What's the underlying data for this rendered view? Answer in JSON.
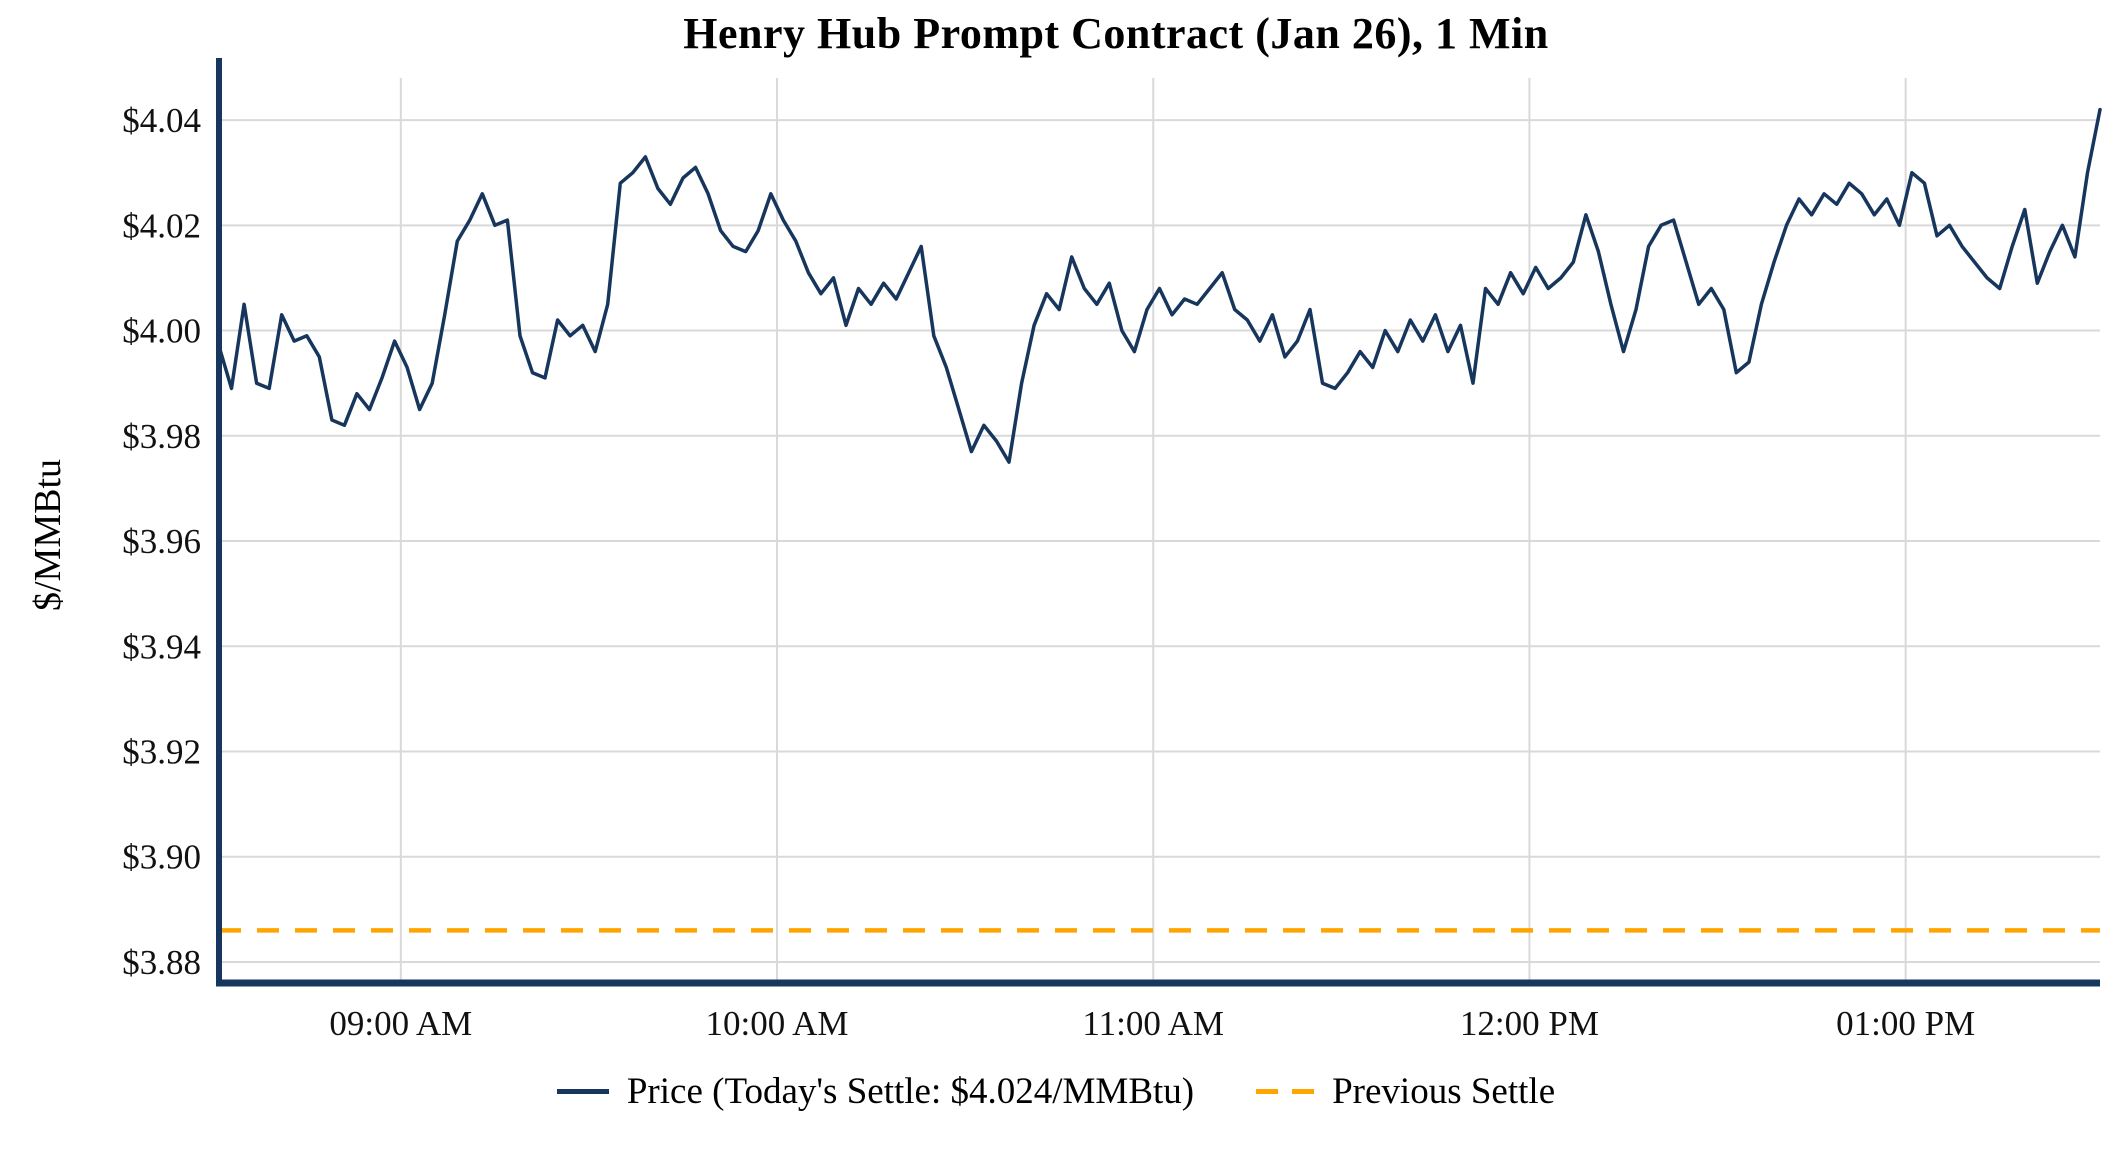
{
  "title": "Henry Hub Prompt Contract (Jan 26), 1 Min",
  "legend": {
    "price_label": "Price (Today's Settle: $4.024/MMBtu)",
    "settle_label": "Previous Settle"
  },
  "colors": {
    "price_line": "#17365d",
    "axis": "#17365d",
    "previous_settle": "#FFA500",
    "grid": "#d9d9d9"
  },
  "chart_data": {
    "type": "line",
    "title": "Henry Hub Prompt Contract (Jan 26), 1 Min",
    "xlabel": "",
    "ylabel": "$/MMBtu",
    "grid": true,
    "legend_position": "bottom",
    "todays_settle": 4.024,
    "previous_settle": 3.886,
    "x_axis": {
      "start_minute": 511,
      "end_minute": 811,
      "ticks": [
        {
          "minute": 540,
          "label": "09:00 AM"
        },
        {
          "minute": 600,
          "label": "10:00 AM"
        },
        {
          "minute": 660,
          "label": "11:00 AM"
        },
        {
          "minute": 720,
          "label": "12:00 PM"
        },
        {
          "minute": 780,
          "label": "01:00 PM"
        }
      ]
    },
    "y_axis": {
      "min": 3.876,
      "max": 4.048,
      "ticks": [
        {
          "value": 3.88,
          "label": "$3.88"
        },
        {
          "value": 3.9,
          "label": "$3.90"
        },
        {
          "value": 3.92,
          "label": "$3.92"
        },
        {
          "value": 3.94,
          "label": "$3.94"
        },
        {
          "value": 3.96,
          "label": "$3.96"
        },
        {
          "value": 3.98,
          "label": "$3.98"
        },
        {
          "value": 4.0,
          "label": "$4.00"
        },
        {
          "value": 4.02,
          "label": "$4.02"
        },
        {
          "value": 4.04,
          "label": "$4.04"
        }
      ]
    },
    "series": [
      {
        "name": "Price (Today's Settle: $4.024/MMBtu)",
        "type": "line",
        "color": "#17365d",
        "x_start_minute": 511,
        "x_step_minutes": 2,
        "values": [
          3.997,
          3.989,
          4.005,
          3.99,
          3.989,
          4.003,
          3.998,
          3.999,
          3.995,
          3.983,
          3.982,
          3.988,
          3.985,
          3.991,
          3.998,
          3.993,
          3.985,
          3.99,
          4.003,
          4.017,
          4.021,
          4.026,
          4.02,
          4.021,
          3.999,
          3.992,
          3.991,
          4.002,
          3.999,
          4.001,
          3.996,
          4.005,
          4.028,
          4.03,
          4.033,
          4.027,
          4.024,
          4.029,
          4.031,
          4.026,
          4.019,
          4.016,
          4.015,
          4.019,
          4.026,
          4.021,
          4.017,
          4.011,
          4.007,
          4.01,
          4.001,
          4.008,
          4.005,
          4.009,
          4.006,
          4.011,
          4.016,
          3.999,
          3.993,
          3.985,
          3.977,
          3.982,
          3.979,
          3.975,
          3.99,
          4.001,
          4.007,
          4.004,
          4.014,
          4.008,
          4.005,
          4.009,
          4.0,
          3.996,
          4.004,
          4.008,
          4.003,
          4.006,
          4.005,
          4.008,
          4.011,
          4.004,
          4.002,
          3.998,
          4.003,
          3.995,
          3.998,
          4.004,
          3.99,
          3.989,
          3.992,
          3.996,
          3.993,
          4.0,
          3.996,
          4.002,
          3.998,
          4.003,
          3.996,
          4.001,
          3.99,
          4.008,
          4.005,
          4.011,
          4.007,
          4.012,
          4.008,
          4.01,
          4.013,
          4.022,
          4.015,
          4.005,
          3.996,
          4.004,
          4.016,
          4.02,
          4.021,
          4.013,
          4.005,
          4.008,
          4.004,
          3.992,
          3.994,
          4.005,
          4.013,
          4.02,
          4.025,
          4.022,
          4.026,
          4.024,
          4.028,
          4.026,
          4.022,
          4.025,
          4.02,
          4.03,
          4.028,
          4.018,
          4.02,
          4.016,
          4.013,
          4.01,
          4.008,
          4.016,
          4.023,
          4.009,
          4.015,
          4.02,
          4.014,
          4.03,
          4.042
        ]
      },
      {
        "name": "Previous Settle",
        "type": "hline",
        "style": "dashed",
        "color": "#FFA500",
        "value": 3.886
      }
    ]
  }
}
